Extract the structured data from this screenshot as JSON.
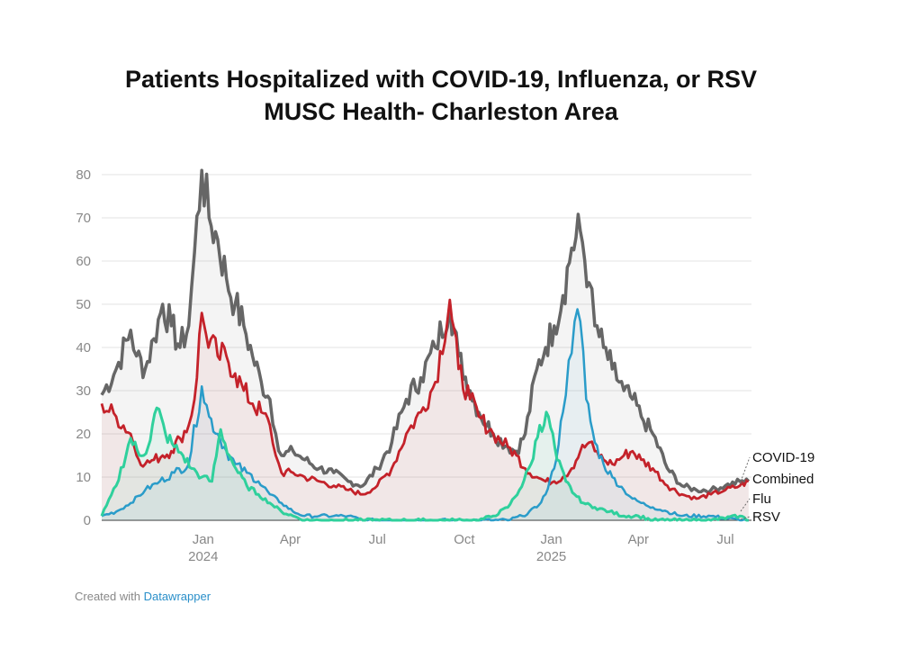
{
  "chart_data": {
    "type": "line",
    "title": "Patients Hospitalized with COVID-19, Influenza, or RSV",
    "subtitle": "MUSC Health- Charleston Area",
    "ylim": [
      0,
      85
    ],
    "y_ticks": [
      0,
      10,
      20,
      30,
      40,
      50,
      60,
      70,
      80
    ],
    "x_ticks": [
      {
        "x": 3.5,
        "label": "Jan",
        "sublabel": "2024"
      },
      {
        "x": 6.5,
        "label": "Apr",
        "sublabel": ""
      },
      {
        "x": 9.5,
        "label": "Jul",
        "sublabel": ""
      },
      {
        "x": 12.5,
        "label": "Oct",
        "sublabel": ""
      },
      {
        "x": 15.5,
        "label": "Jan",
        "sublabel": "2025"
      },
      {
        "x": 18.5,
        "label": "Apr",
        "sublabel": ""
      },
      {
        "x": 21.5,
        "label": "Jul",
        "sublabel": ""
      }
    ],
    "xlim": [
      0,
      22.4
    ],
    "grid": true,
    "legend": "right-end labels",
    "series": [
      {
        "name": "Combined",
        "color": "#666666",
        "x": [
          0,
          0.5,
          1,
          1.2,
          1.5,
          1.8,
          2.1,
          2.4,
          2.7,
          3,
          3.2,
          3.45,
          3.7,
          4,
          4.3,
          4.6,
          4.9,
          5.2,
          5.5,
          5.8,
          6,
          6.2,
          6.6,
          7,
          7.5,
          8,
          8.5,
          9,
          9.5,
          10,
          10.5,
          11,
          11.5,
          12,
          12.3,
          12.7,
          13,
          13.5,
          14,
          14.3,
          14.6,
          15,
          15.3,
          15.6,
          15.9,
          16.2,
          16.5,
          16.8,
          17,
          17.3,
          17.6,
          18,
          18.3,
          18.6,
          19,
          19.5,
          20,
          20.5,
          21,
          21.5,
          22,
          22.3
        ],
        "values": [
          29,
          35,
          44,
          38,
          35,
          42,
          50,
          45,
          40,
          45,
          62,
          81,
          70,
          65,
          56,
          50,
          45,
          38,
          32,
          28,
          20,
          15,
          16,
          14,
          12,
          11,
          9,
          8,
          12,
          18,
          28,
          33,
          40,
          50,
          38,
          30,
          25,
          20,
          17,
          16,
          20,
          35,
          40,
          45,
          52,
          63,
          67,
          55,
          45,
          40,
          35,
          30,
          28,
          24,
          20,
          12,
          8,
          7,
          7,
          8,
          9,
          9
        ]
      },
      {
        "name": "COVID-19",
        "color": "#c4222a",
        "x": [
          0,
          0.5,
          1,
          1.2,
          1.5,
          1.8,
          2.1,
          2.4,
          2.7,
          3,
          3.2,
          3.45,
          3.6,
          4,
          4.3,
          4.6,
          4.9,
          5.2,
          5.5,
          5.8,
          6,
          6.2,
          6.6,
          7,
          7.5,
          8,
          8.5,
          9,
          9.5,
          10,
          10.5,
          11,
          11.5,
          12,
          12.3,
          12.7,
          13,
          13.5,
          14,
          14.3,
          14.6,
          15,
          15.3,
          15.6,
          15.9,
          16.2,
          16.5,
          16.8,
          17,
          17.3,
          17.6,
          18,
          18.3,
          18.6,
          19,
          19.5,
          20,
          20.5,
          21,
          21.5,
          22,
          22.3
        ],
        "values": [
          27,
          24,
          20,
          15,
          13,
          14,
          15,
          16,
          19,
          22,
          28,
          48,
          43,
          38,
          38,
          34,
          30,
          27,
          25,
          22,
          15,
          11,
          11,
          10,
          9,
          8,
          7,
          6,
          8,
          12,
          20,
          25,
          32,
          51,
          35,
          28,
          24,
          20,
          17,
          15,
          12,
          10,
          9,
          9,
          10,
          12,
          16,
          18,
          16,
          14,
          13,
          15,
          16,
          14,
          12,
          8,
          6,
          5,
          6,
          7,
          8,
          9
        ]
      },
      {
        "name": "Flu",
        "color": "#2a9cc9",
        "x": [
          0,
          0.5,
          1,
          1.5,
          2,
          2.5,
          3,
          3.45,
          3.7,
          4,
          4.3,
          4.6,
          5,
          5.4,
          5.8,
          6.2,
          6.6,
          7,
          7.5,
          8,
          8.5,
          9,
          9.5,
          10,
          11,
          12,
          13,
          13.5,
          14,
          14.5,
          15,
          15.3,
          15.6,
          15.9,
          16.1,
          16.3,
          16.5,
          16.7,
          17,
          17.3,
          17.6,
          18,
          18.3,
          18.6,
          19,
          19.5,
          20,
          21,
          22,
          22.3
        ],
        "values": [
          1,
          2,
          4,
          7,
          9,
          11,
          13,
          31,
          24,
          20,
          16,
          13,
          11,
          9,
          6,
          4,
          2,
          1,
          1,
          1,
          1,
          0,
          0,
          0,
          0,
          0,
          0,
          0,
          0,
          1,
          3,
          6,
          12,
          25,
          37,
          46,
          46,
          28,
          18,
          13,
          10,
          7,
          5,
          4,
          3,
          2,
          1,
          1,
          0,
          0
        ]
      },
      {
        "name": "RSV",
        "color": "#2fd09c",
        "x": [
          0,
          0.5,
          1,
          1.3,
          1.6,
          1.9,
          2.2,
          2.5,
          2.8,
          3.1,
          3.45,
          3.8,
          4.1,
          4.4,
          4.7,
          5,
          5.4,
          5.8,
          6.2,
          6.6,
          7,
          8,
          9,
          10,
          11,
          12,
          13,
          13.5,
          14,
          14.4,
          14.8,
          15.1,
          15.4,
          15.7,
          16,
          16.3,
          16.6,
          17,
          17.5,
          18,
          18.5,
          19,
          20,
          21,
          22,
          22.3
        ],
        "values": [
          1,
          8,
          19,
          15,
          17,
          26,
          20,
          17,
          15,
          12,
          10,
          9,
          21,
          15,
          11,
          8,
          6,
          4,
          2,
          1,
          0,
          0,
          0,
          0,
          0,
          0,
          0,
          1,
          3,
          7,
          13,
          22,
          24,
          14,
          9,
          6,
          4,
          3,
          2,
          1,
          1,
          0,
          0,
          0,
          1,
          0
        ]
      }
    ],
    "end_labels": [
      "COVID-19",
      "Combined",
      "Flu",
      "RSV"
    ]
  },
  "footer": {
    "prefix": "Created with ",
    "brand": "Datawrapper"
  }
}
